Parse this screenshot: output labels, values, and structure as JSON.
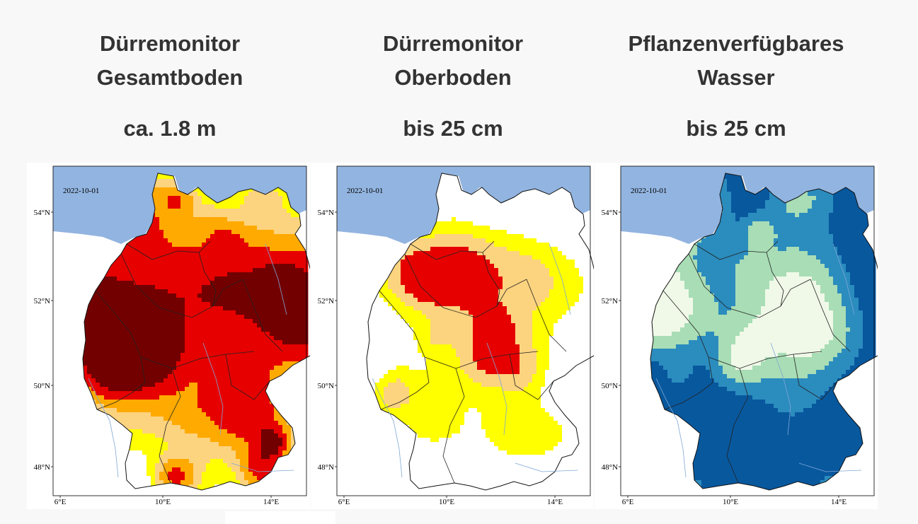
{
  "panels": [
    {
      "title_line1": "Dürremonitor",
      "title_line2": "Gesamtboden",
      "depth": "ca. 1.8 m",
      "date": "2022-10-01",
      "map_type": "drought"
    },
    {
      "title_line1": "Dürremonitor",
      "title_line2": "Oberboden",
      "depth": "bis 25 cm",
      "date": "2022-10-01",
      "map_type": "drought-topsoil"
    },
    {
      "title_line1": "Pflanzenverfügbares",
      "title_line2": "Wasser",
      "depth": "bis 25 cm",
      "date": "2022-10-01",
      "map_type": "plant-water"
    }
  ],
  "axes": {
    "lat_labels": [
      "54°N",
      "52°N",
      "50°N",
      "48°N"
    ],
    "lon_labels": [
      "6°E",
      "10°E",
      "14°E"
    ]
  },
  "colors": {
    "sea": "#92b4e0",
    "land_outside": "#ffffff",
    "drought_exceptional": "#730000",
    "drought_extreme": "#e60000",
    "drought_severe": "#ffaa00",
    "drought_moderate": "#fcd37f",
    "drought_abnormal": "#ffff00",
    "water_dark": "#08589e",
    "water_mid": "#2b8cbe",
    "water_light": "#a8ddb5",
    "water_pale": "#f0f9e8"
  }
}
